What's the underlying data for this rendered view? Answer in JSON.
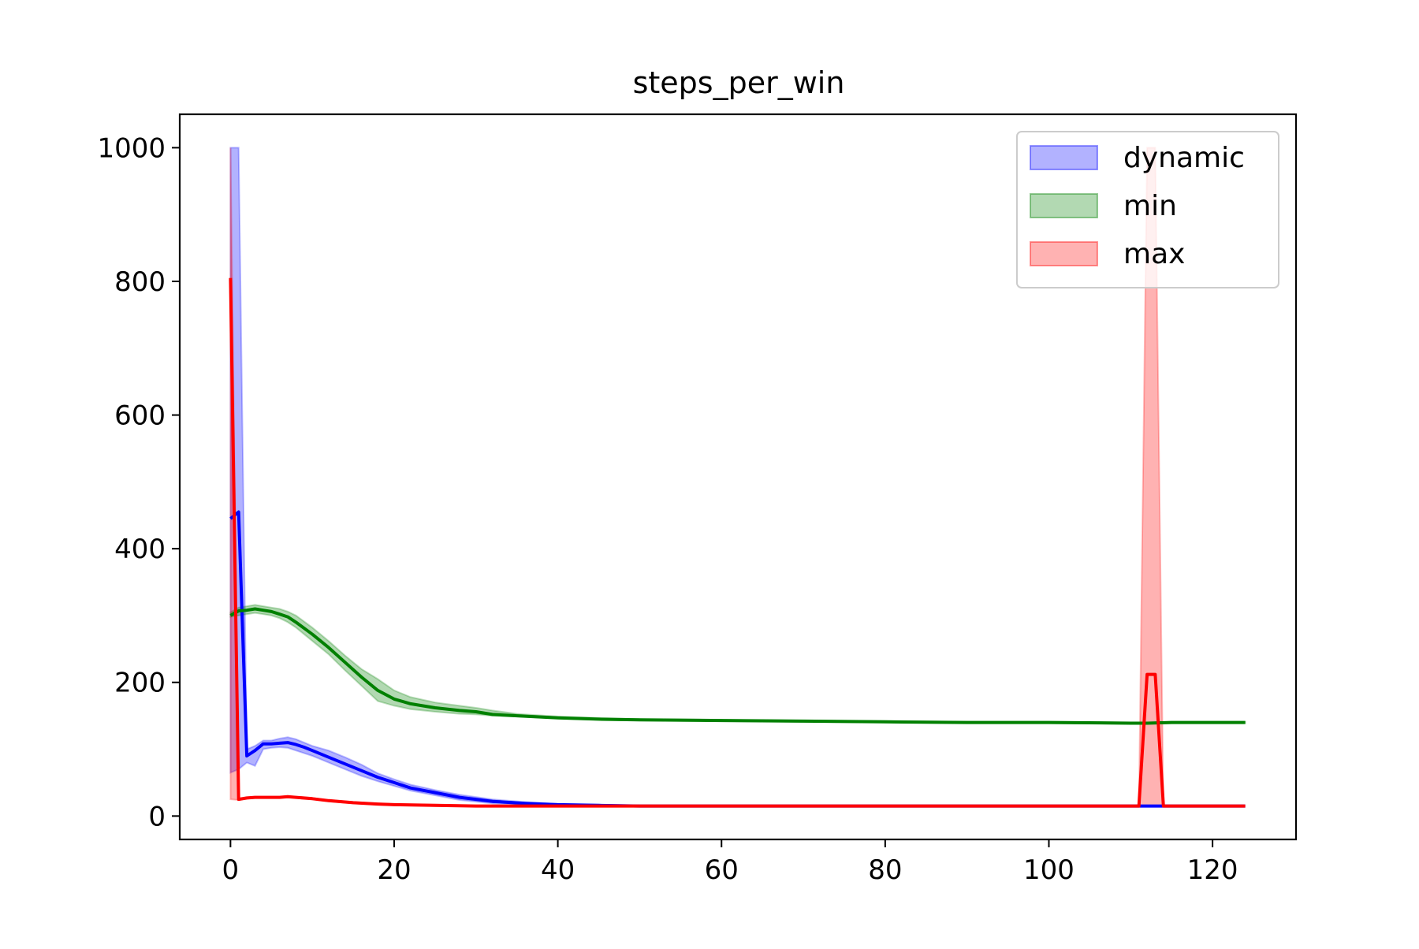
{
  "chart_data": {
    "type": "line",
    "title": "steps_per_win",
    "xlabel": "",
    "ylabel": "",
    "xlim": [
      -6.2,
      130.2
    ],
    "ylim": [
      -35,
      1050
    ],
    "xticks": [
      0,
      20,
      40,
      60,
      80,
      100,
      120
    ],
    "yticks": [
      0,
      200,
      400,
      600,
      800,
      1000
    ],
    "grid": false,
    "legend_placement": "top-right",
    "series": [
      {
        "name": "dynamic",
        "color": "#0000ff",
        "band_alpha": 0.3,
        "x": [
          0,
          1,
          2,
          3,
          4,
          5,
          6,
          7,
          8,
          9,
          10,
          12,
          14,
          16,
          18,
          20,
          22,
          25,
          28,
          32,
          36,
          40,
          45,
          50,
          60,
          80,
          100,
          110,
          112,
          113,
          114,
          115,
          120,
          124
        ],
        "mean": [
          445,
          455,
          90,
          98,
          108,
          108,
          109,
          110,
          107,
          103,
          98,
          88,
          78,
          68,
          58,
          50,
          42,
          35,
          28,
          22,
          19,
          17,
          16,
          15,
          15,
          15,
          15,
          15,
          15,
          15,
          15,
          15,
          15,
          15
        ],
        "lower": [
          65,
          70,
          80,
          75,
          100,
          102,
          103,
          102,
          98,
          94,
          90,
          80,
          70,
          60,
          52,
          45,
          38,
          31,
          24,
          19,
          17,
          16,
          15,
          15,
          15,
          15,
          15,
          15,
          15,
          15,
          15,
          15,
          15,
          15
        ],
        "upper": [
          1000,
          1000,
          100,
          105,
          113,
          113,
          116,
          118,
          115,
          110,
          105,
          98,
          88,
          77,
          64,
          55,
          47,
          39,
          32,
          25,
          21,
          18,
          17,
          16,
          15,
          15,
          15,
          15,
          15,
          15,
          15,
          15,
          15,
          15
        ]
      },
      {
        "name": "min",
        "color": "#008000",
        "band_alpha": 0.3,
        "x": [
          0,
          1,
          2,
          3,
          4,
          5,
          6,
          7,
          8,
          10,
          12,
          14,
          16,
          18,
          20,
          22,
          25,
          28,
          30,
          32,
          35,
          40,
          45,
          50,
          60,
          70,
          80,
          90,
          100,
          110,
          112,
          115,
          120,
          124
        ],
        "mean": [
          300,
          307,
          308,
          310,
          308,
          306,
          302,
          298,
          290,
          272,
          252,
          230,
          208,
          188,
          175,
          168,
          162,
          158,
          156,
          152,
          150,
          147,
          145,
          144,
          143,
          142,
          141,
          140,
          140,
          139,
          139,
          140,
          140,
          140
        ],
        "lower": [
          298,
          300,
          302,
          304,
          302,
          300,
          296,
          290,
          282,
          262,
          242,
          218,
          195,
          172,
          165,
          160,
          156,
          153,
          152,
          150,
          149,
          146,
          144,
          143,
          142,
          141,
          140,
          139,
          139,
          138,
          138,
          139,
          139,
          139
        ],
        "upper": [
          305,
          312,
          314,
          316,
          314,
          312,
          310,
          306,
          300,
          282,
          262,
          240,
          220,
          205,
          188,
          178,
          170,
          165,
          162,
          158,
          153,
          149,
          147,
          145,
          144,
          143,
          142,
          141,
          141,
          140,
          140,
          141,
          141,
          141
        ]
      },
      {
        "name": "max",
        "color": "#ff0000",
        "band_alpha": 0.3,
        "x": [
          0,
          1,
          2,
          3,
          4,
          5,
          6,
          7,
          8,
          10,
          12,
          15,
          18,
          20,
          25,
          30,
          40,
          50,
          60,
          80,
          100,
          110,
          111,
          112,
          113,
          114,
          115,
          120,
          124
        ],
        "mean": [
          805,
          25,
          27,
          28,
          28,
          28,
          28,
          29,
          28,
          26,
          23,
          20,
          18,
          17,
          16,
          15,
          15,
          15,
          15,
          15,
          15,
          15,
          15,
          212,
          212,
          15,
          15,
          15,
          15
        ],
        "lower": [
          25,
          24,
          26,
          27,
          27,
          27,
          27,
          28,
          27,
          25,
          22,
          19,
          17,
          16,
          15,
          15,
          15,
          15,
          15,
          15,
          15,
          15,
          15,
          15,
          15,
          15,
          15,
          15,
          15
        ],
        "upper": [
          1000,
          26,
          28,
          29,
          29,
          29,
          29,
          30,
          29,
          27,
          24,
          21,
          19,
          18,
          17,
          16,
          15,
          15,
          15,
          15,
          15,
          15,
          15,
          1000,
          1000,
          15,
          15,
          15,
          15
        ]
      }
    ]
  }
}
